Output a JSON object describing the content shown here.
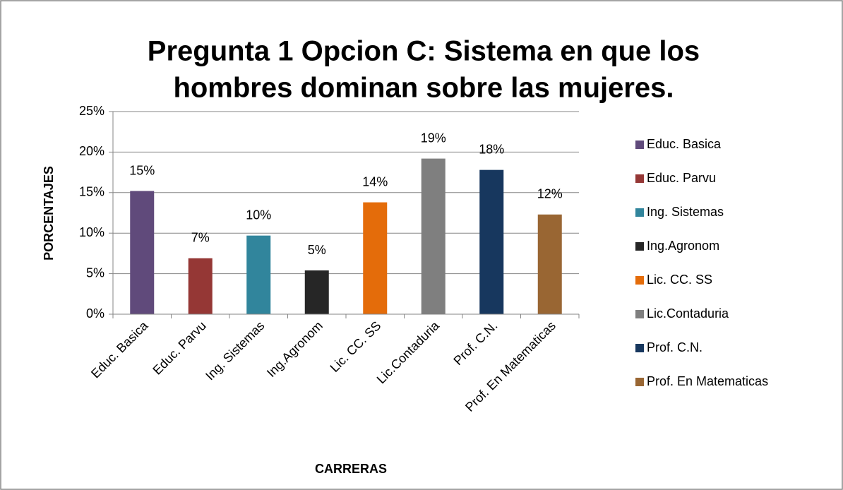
{
  "chart_data": {
    "type": "bar",
    "title": [
      "Pregunta 1 Opcion  C: Sistema en que los",
      "hombres dominan sobre las mujeres."
    ],
    "x_label": "CARRERAS",
    "y_label": "PORCENTAJES",
    "categories": [
      "Educ. Basica",
      "Educ. Parvu",
      "Ing. Sistemas",
      "Ing.Agronom",
      "Lic. CC. SS",
      "Lic.Contaduria",
      "Prof. C.N.",
      "Prof. En Matematicas"
    ],
    "values": [
      15.2,
      6.9,
      9.7,
      5.4,
      13.8,
      19.2,
      17.8,
      12.3
    ],
    "value_labels": [
      "15%",
      "7%",
      "10%",
      "5%",
      "14%",
      "19%",
      "18%",
      "12%"
    ],
    "colors": [
      "#604a7b",
      "#953735",
      "#31859c",
      "#262626",
      "#e46c0a",
      "#7f7f7f",
      "#17375e",
      "#996633"
    ],
    "ylim": [
      0,
      25
    ],
    "yticks": [
      {
        "value": 0,
        "label": "0%"
      },
      {
        "value": 5,
        "label": "5%"
      },
      {
        "value": 10,
        "label": "10%"
      },
      {
        "value": 15,
        "label": "15%"
      },
      {
        "value": 20,
        "label": "20%"
      },
      {
        "value": 25,
        "label": "25%"
      }
    ],
    "grid": true,
    "legend": "right"
  }
}
